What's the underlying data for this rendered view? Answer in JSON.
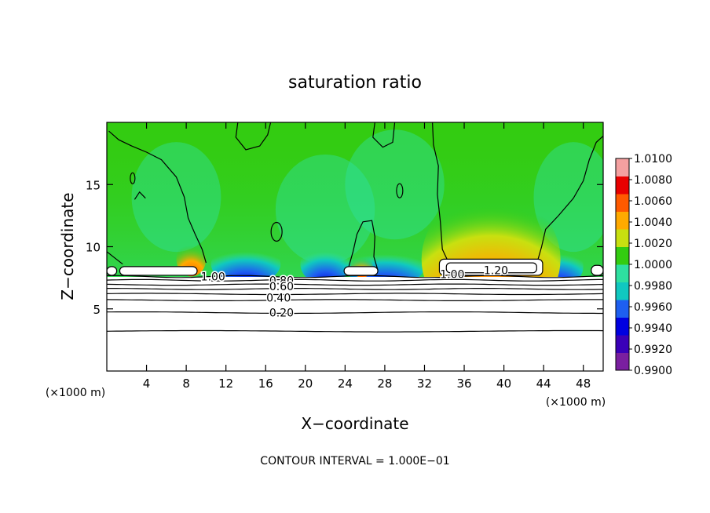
{
  "chart_data": {
    "type": "heatmap",
    "title": "saturation ratio",
    "xlabel": "X−coordinate",
    "ylabel": "Z−coordinate",
    "x_unit_label": "(×1000 m)",
    "x_unit_label_right": "(×1000 m)",
    "xlim": [
      0,
      50
    ],
    "ylim": [
      0,
      20
    ],
    "x_ticks": [
      "4",
      "8",
      "12",
      "16",
      "20",
      "24",
      "28",
      "32",
      "36",
      "40",
      "44",
      "48"
    ],
    "y_ticks": [
      "5",
      "10",
      "15"
    ],
    "colorbar": {
      "min": 0.99,
      "max": 1.01,
      "labels": [
        "1.0100",
        "1.0080",
        "1.0060",
        "1.0040",
        "1.0020",
        "1.0000",
        "0.9980",
        "0.9960",
        "0.9940",
        "0.9920",
        "0.9900"
      ],
      "colors": [
        "#7a1fa0",
        "#3a00b8",
        "#0000e0",
        "#1e5ff0",
        "#10c8c0",
        "#2ee0a0",
        "#33cc11",
        "#c8e010",
        "#ffaa00",
        "#ff5a00",
        "#e80000",
        "#f4a0a0"
      ]
    },
    "contour_labels": [
      {
        "text": "1.00",
        "x": 10.7,
        "z": 7.6
      },
      {
        "text": "0.80",
        "x": 17.6,
        "z": 7.3
      },
      {
        "text": "0.60",
        "x": 17.6,
        "z": 6.8
      },
      {
        "text": "0.40",
        "x": 17.3,
        "z": 5.9
      },
      {
        "text": "0.20",
        "x": 17.6,
        "z": 4.7
      },
      {
        "text": "1.00",
        "x": 34.8,
        "z": 7.8
      },
      {
        "text": "1.20",
        "x": 39.2,
        "z": 8.1
      }
    ],
    "contour_interval_text": "CONTOUR INTERVAL = 1.000E−01"
  }
}
